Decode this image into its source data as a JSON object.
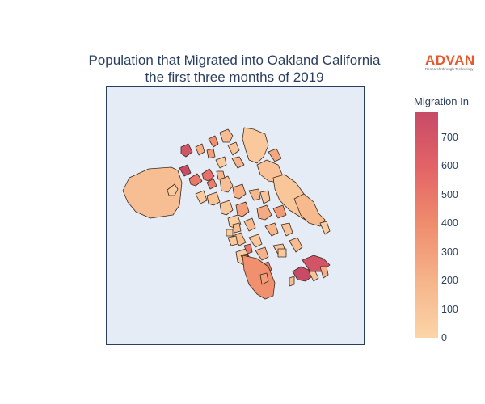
{
  "title": {
    "line1": "Population that Migrated into Oakland California",
    "line2": "the first three months of 2019"
  },
  "logo": {
    "name": "ADVAN",
    "tagline": "Research through Technology"
  },
  "colorbar": {
    "title": "Migration In",
    "min": 0,
    "max": 790,
    "ticks": [
      "700",
      "600",
      "500",
      "400",
      "300",
      "200",
      "100",
      "0"
    ],
    "colors": [
      "#fbd5a8",
      "#f6b48a",
      "#ef8d6d",
      "#e36467",
      "#c74a67"
    ]
  },
  "chart_data": {
    "type": "choropleth",
    "title": "Population that Migrated into Oakland California the first three months of 2019",
    "legend_title": "Migration In",
    "color_range": [
      0,
      790
    ],
    "colorscale": "peach",
    "region": "Oakland, California",
    "regions": [
      {
        "value": 140
      },
      {
        "value": 60
      },
      {
        "value": 540
      },
      {
        "value": 500
      },
      {
        "value": 470
      },
      {
        "value": 790
      },
      {
        "value": 710
      },
      {
        "value": 230
      },
      {
        "value": 380
      },
      {
        "value": 310
      },
      {
        "value": 150
      },
      {
        "value": 100
      },
      {
        "value": 60
      },
      {
        "value": 200
      },
      {
        "value": 80
      },
      {
        "value": 120
      },
      {
        "value": 260
      },
      {
        "value": 90
      },
      {
        "value": 170
      },
      {
        "value": 50
      },
      {
        "value": 130
      },
      {
        "value": 220
      },
      {
        "value": 110
      },
      {
        "value": 70
      },
      {
        "value": 300
      },
      {
        "value": 180
      },
      {
        "value": 95
      },
      {
        "value": 40
      },
      {
        "value": 160
      },
      {
        "value": 250
      },
      {
        "value": 330
      },
      {
        "value": 140
      },
      {
        "value": 85
      },
      {
        "value": 190
      },
      {
        "value": 120
      },
      {
        "value": 60
      },
      {
        "value": 210
      },
      {
        "value": 100
      },
      {
        "value": 150
      },
      {
        "value": 75
      }
    ]
  }
}
